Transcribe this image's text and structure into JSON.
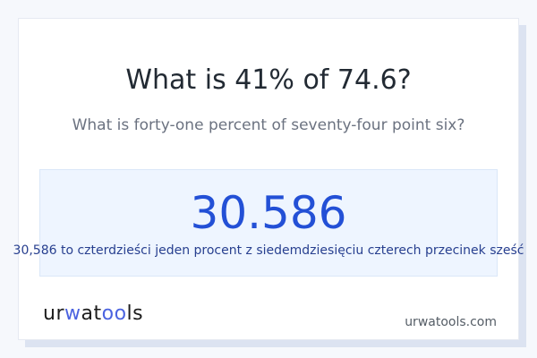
{
  "title": "What is 41% of 74.6?",
  "subtitle": "What is forty-one percent of seventy-four point six?",
  "result": {
    "value": "30.586",
    "words": "30,586 to czterdzieści jeden procent z siedemdziesięciu czterech przecinek sześć"
  },
  "footer": {
    "logo_text": "urwatools",
    "logo_parts": [
      "ur",
      "w",
      "at",
      "oo",
      "ls"
    ],
    "site": "urwatools.com"
  },
  "colors": {
    "accent": "#2350d6",
    "logo_accent": "#4b63e0",
    "result_bg": "#eef5ff"
  }
}
